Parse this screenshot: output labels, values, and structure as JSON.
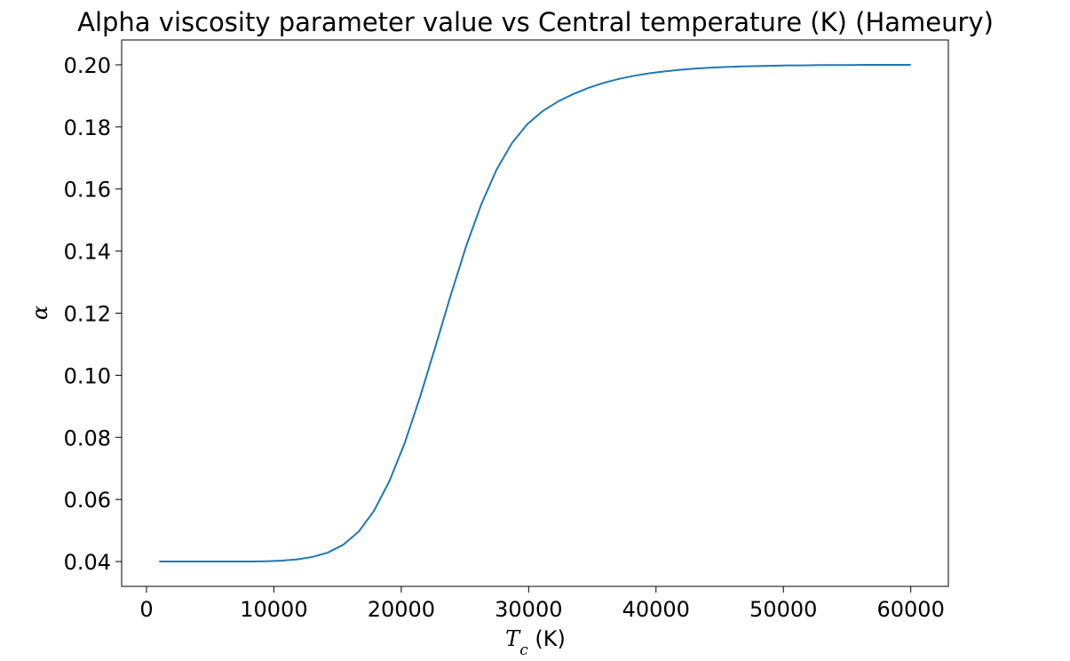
{
  "chart_data": {
    "type": "line",
    "title": "Alpha viscosity parameter value vs Central temperature (K) (Hameury)",
    "xlabel": {
      "symbol": "T",
      "subscript": "c",
      "unit": " (K)"
    },
    "ylabel": "α",
    "xlim": [
      -1950,
      62950
    ],
    "ylim": [
      0.032,
      0.208
    ],
    "xticks": [
      0,
      10000,
      20000,
      30000,
      40000,
      50000,
      60000
    ],
    "xtick_labels": [
      "0",
      "10000",
      "20000",
      "30000",
      "40000",
      "50000",
      "60000"
    ],
    "yticks": [
      0.04,
      0.06,
      0.08,
      0.1,
      0.12,
      0.14,
      0.16,
      0.18,
      0.2
    ],
    "ytick_labels": [
      "0.04",
      "0.06",
      "0.08",
      "0.10",
      "0.12",
      "0.14",
      "0.16",
      "0.18",
      "0.20"
    ],
    "grid": false,
    "color": "#1f77b4",
    "series": [
      {
        "x": [
          1000,
          2204,
          3408,
          4612,
          5816,
          7020,
          8224,
          9429,
          10633,
          11837,
          13041,
          14245,
          15449,
          16653,
          17857,
          19061,
          20265,
          21469,
          22673,
          23878,
          25082,
          26286,
          27490,
          28694,
          29898,
          31102,
          32306,
          33510,
          34714,
          35918,
          37122,
          38327,
          39531,
          40735,
          41939,
          43143,
          44347,
          45551,
          46755,
          47959,
          49163,
          50367,
          51571,
          52776,
          53980,
          55184,
          56388,
          57592,
          58796,
          60000
        ],
        "y": [
          0.04,
          0.04,
          0.04,
          0.04,
          0.04,
          0.04,
          0.04,
          0.0401,
          0.0403,
          0.0407,
          0.0415,
          0.0429,
          0.0454,
          0.0496,
          0.0563,
          0.0658,
          0.0781,
          0.0929,
          0.1091,
          0.1257,
          0.1414,
          0.1551,
          0.1663,
          0.1748,
          0.1809,
          0.1851,
          0.1882,
          0.1906,
          0.1926,
          0.1942,
          0.1955,
          0.1965,
          0.1973,
          0.1979,
          0.1984,
          0.1988,
          0.1991,
          0.1993,
          0.1995,
          0.1996,
          0.1997,
          0.1998,
          0.1998,
          0.1999,
          0.1999,
          0.1999,
          0.2,
          0.2,
          0.2,
          0.2
        ]
      }
    ]
  }
}
